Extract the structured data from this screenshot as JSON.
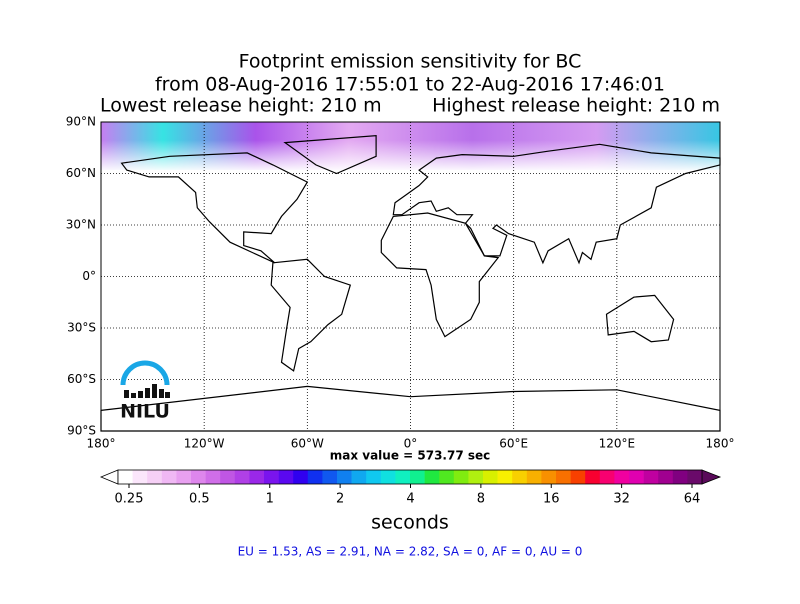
{
  "title": {
    "line1": "Footprint emission sensitivity for BC",
    "line2": "from 08-Aug-2016 17:55:01 to 22-Aug-2016 17:46:01",
    "lowest": "Lowest release height: 210 m",
    "highest": "Highest release height: 210 m"
  },
  "map": {
    "lat_labels": [
      "90°N",
      "60°N",
      "30°N",
      "0°",
      "30°S",
      "60°S",
      "90°S"
    ],
    "lon_labels": [
      "180°",
      "120°W",
      "60°W",
      "0°",
      "60°E",
      "120°E",
      "180°"
    ],
    "max_value": "max value = 573.77 sec",
    "logo": "NILU"
  },
  "colorbar": {
    "ticks": [
      "0.25",
      "0.5",
      "1",
      "2",
      "4",
      "8",
      "16",
      "32",
      "64"
    ],
    "label": "seconds",
    "low_color": "#ffffff",
    "high_color": "#5a0a5a",
    "colors": [
      "#ffffff",
      "#fbe6fb",
      "#f6d0f6",
      "#f0b8f4",
      "#e8a0f0",
      "#de86ec",
      "#d06ee8",
      "#c056e4",
      "#b040e6",
      "#9a28e8",
      "#7a14ee",
      "#5a08f0",
      "#3000f0",
      "#1030f0",
      "#1058f0",
      "#1080f0",
      "#10a8f0",
      "#10c8f0",
      "#10e0e0",
      "#10f0c0",
      "#10f090",
      "#20e840",
      "#50e820",
      "#80ec10",
      "#b0f010",
      "#d8f000",
      "#f8f000",
      "#f8d000",
      "#f8b000",
      "#f89000",
      "#f87000",
      "#f84000",
      "#f80030",
      "#f80070",
      "#f000a0",
      "#e000b0",
      "#c000a0",
      "#a00090",
      "#800080",
      "#6a0a6a"
    ]
  },
  "footer": "EU = 1.53,  AS = 2.91,  NA = 2.82,  SA = 0,  AF = 0,  AU = 0"
}
